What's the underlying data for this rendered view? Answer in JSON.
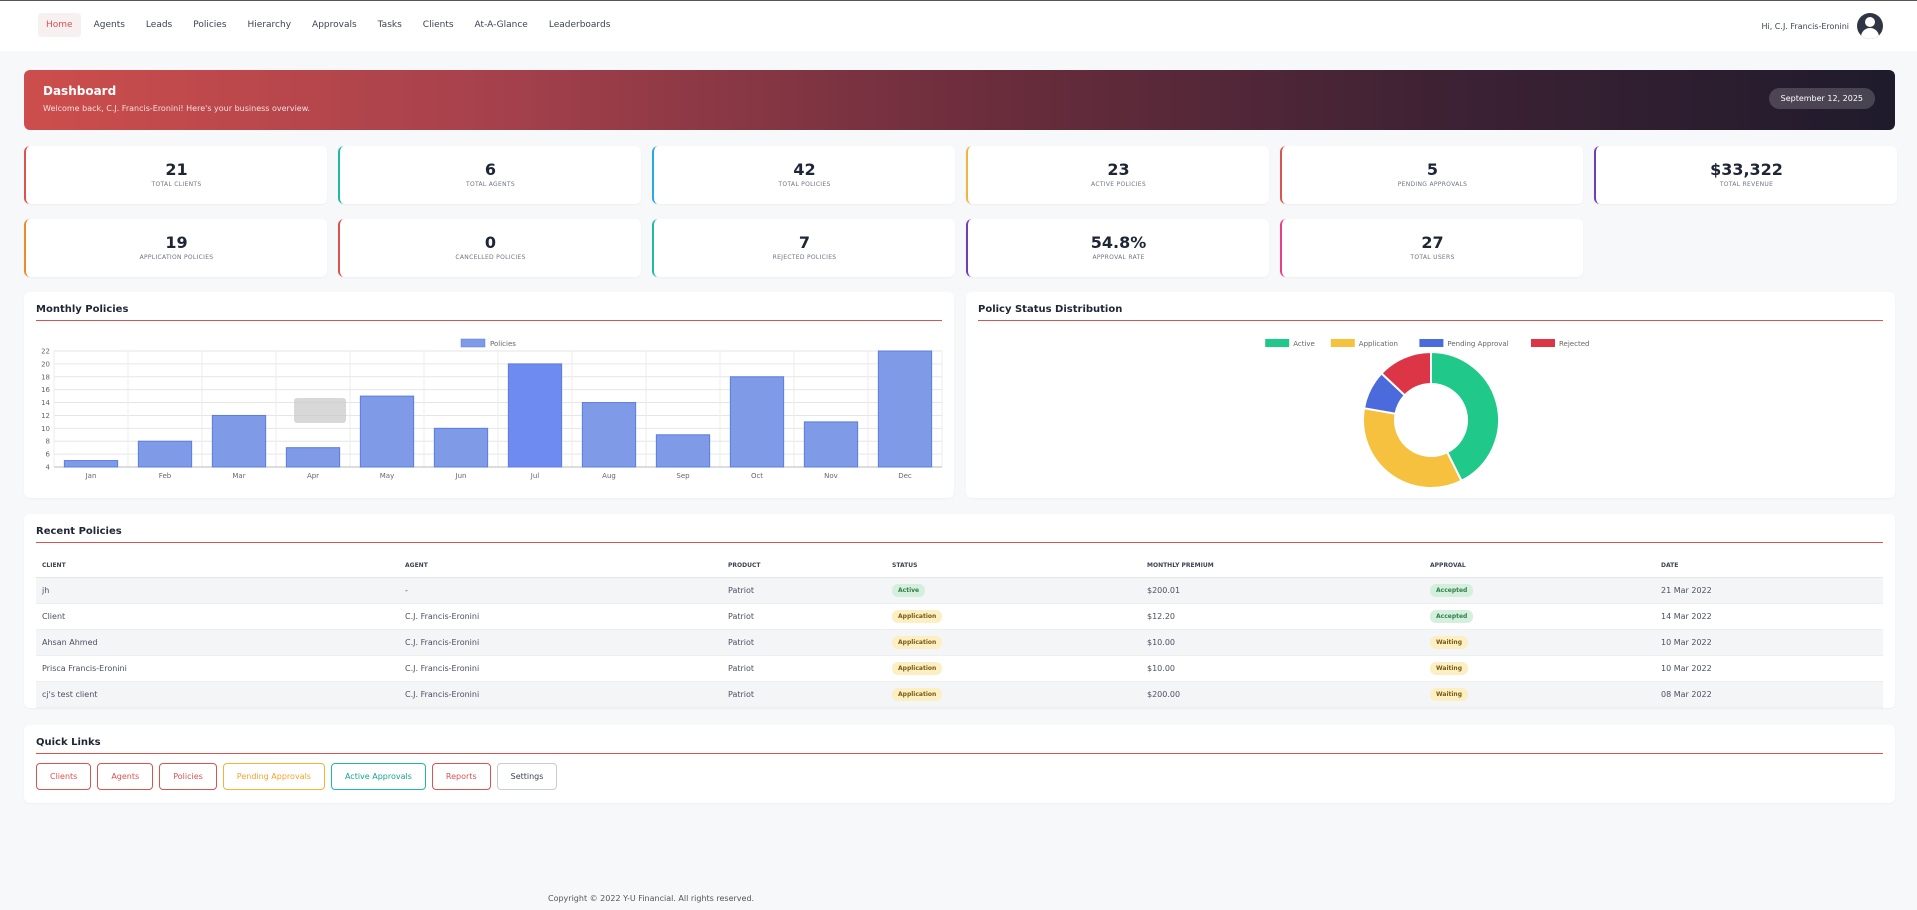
{
  "nav": {
    "items": [
      "Home",
      "Agents",
      "Leads",
      "Policies",
      "Hierarchy",
      "Approvals",
      "Tasks",
      "Clients",
      "At-A-Glance",
      "Leaderboards"
    ],
    "active": "Home",
    "greeting": "Hi, C.J. Francis-Eronini"
  },
  "hero": {
    "title": "Dashboard",
    "subtitle": "Welcome back, C.J. Francis-Eronini! Here's your business overview.",
    "date": "September 12, 2025"
  },
  "stats": [
    {
      "value": "21",
      "label": "TOTAL CLIENTS",
      "color": "#d9534f"
    },
    {
      "value": "6",
      "label": "TOTAL AGENTS",
      "color": "#22b8a6"
    },
    {
      "value": "42",
      "label": "TOTAL POLICIES",
      "color": "#29a9e1"
    },
    {
      "value": "23",
      "label": "ACTIVE POLICIES",
      "color": "#f3b43b"
    },
    {
      "value": "5",
      "label": "PENDING APPROVALS",
      "color": "#d9534f"
    },
    {
      "value": "$33,322",
      "label": "TOTAL REVENUE",
      "color": "#6f3fb5"
    },
    {
      "value": "19",
      "label": "APPLICATION POLICIES",
      "color": "#f08a24"
    },
    {
      "value": "0",
      "label": "CANCELLED POLICIES",
      "color": "#d9534f"
    },
    {
      "value": "7",
      "label": "REJECTED POLICIES",
      "color": "#22b8a6"
    },
    {
      "value": "54.8%",
      "label": "APPROVAL RATE",
      "color": "#6f3fb5"
    },
    {
      "value": "27",
      "label": "TOTAL USERS",
      "color": "#e83e8c"
    }
  ],
  "monthly": {
    "title": "Monthly Policies"
  },
  "status_dist": {
    "title": "Policy Status Distribution"
  },
  "chart_data": [
    {
      "type": "bar",
      "categories": [
        "Jan",
        "Feb",
        "Mar",
        "Apr",
        "May",
        "Jun",
        "Jul",
        "Aug",
        "Sep",
        "Oct",
        "Nov",
        "Dec"
      ],
      "series": [
        {
          "name": "Policies",
          "values": [
            5,
            8,
            12,
            7,
            15,
            10,
            20,
            14,
            9,
            18,
            11,
            22
          ]
        }
      ],
      "ylim": [
        4,
        22
      ],
      "yticks": [
        4,
        6,
        8,
        10,
        12,
        14,
        16,
        18,
        20,
        22
      ],
      "grid": true,
      "legend": "top-center",
      "colors": {
        "bar": "#7f9ae6",
        "highlight": "#6d8bf0",
        "border": "#5b7de0"
      }
    },
    {
      "type": "pie",
      "labels": [
        "Active",
        "Application",
        "Pending Approval",
        "Rejected"
      ],
      "values": [
        23,
        19,
        5,
        7
      ],
      "colors": [
        "#20c98a",
        "#f5c13e",
        "#4b6bdc",
        "#dc3545"
      ],
      "donut": true,
      "legend": "top-center"
    }
  ],
  "recent": {
    "title": "Recent Policies",
    "columns": [
      "CLIENT",
      "AGENT",
      "PRODUCT",
      "STATUS",
      "MONTHLY PREMIUM",
      "APPROVAL",
      "DATE"
    ],
    "rows": [
      {
        "client": "jh",
        "agent": "-",
        "product": "Patriot",
        "status": "Active",
        "premium": "$200.01",
        "approval": "Accepted",
        "date": "21 Mar 2022"
      },
      {
        "client": "Client",
        "agent": "C.J. Francis-Eronini",
        "product": "Patriot",
        "status": "Application",
        "premium": "$12.20",
        "approval": "Accepted",
        "date": "14 Mar 2022"
      },
      {
        "client": "Ahsan Ahmed",
        "agent": "C.J. Francis-Eronini",
        "product": "Patriot",
        "status": "Application",
        "premium": "$10.00",
        "approval": "Waiting",
        "date": "10 Mar 2022"
      },
      {
        "client": "Prisca Francis-Eronini",
        "agent": "C.J. Francis-Eronini",
        "product": "Patriot",
        "status": "Application",
        "premium": "$10.00",
        "approval": "Waiting",
        "date": "10 Mar 2022"
      },
      {
        "client": "cj's test client",
        "agent": "C.J. Francis-Eronini",
        "product": "Patriot",
        "status": "Application",
        "premium": "$200.00",
        "approval": "Waiting",
        "date": "08 Mar 2022"
      }
    ]
  },
  "quick_links": {
    "title": "Quick Links",
    "items": [
      "Clients",
      "Agents",
      "Policies",
      "Pending Approvals",
      "Active Approvals",
      "Reports",
      "Settings"
    ]
  },
  "footer": "Copyright © 2022 Y-U Financial. All rights reserved."
}
